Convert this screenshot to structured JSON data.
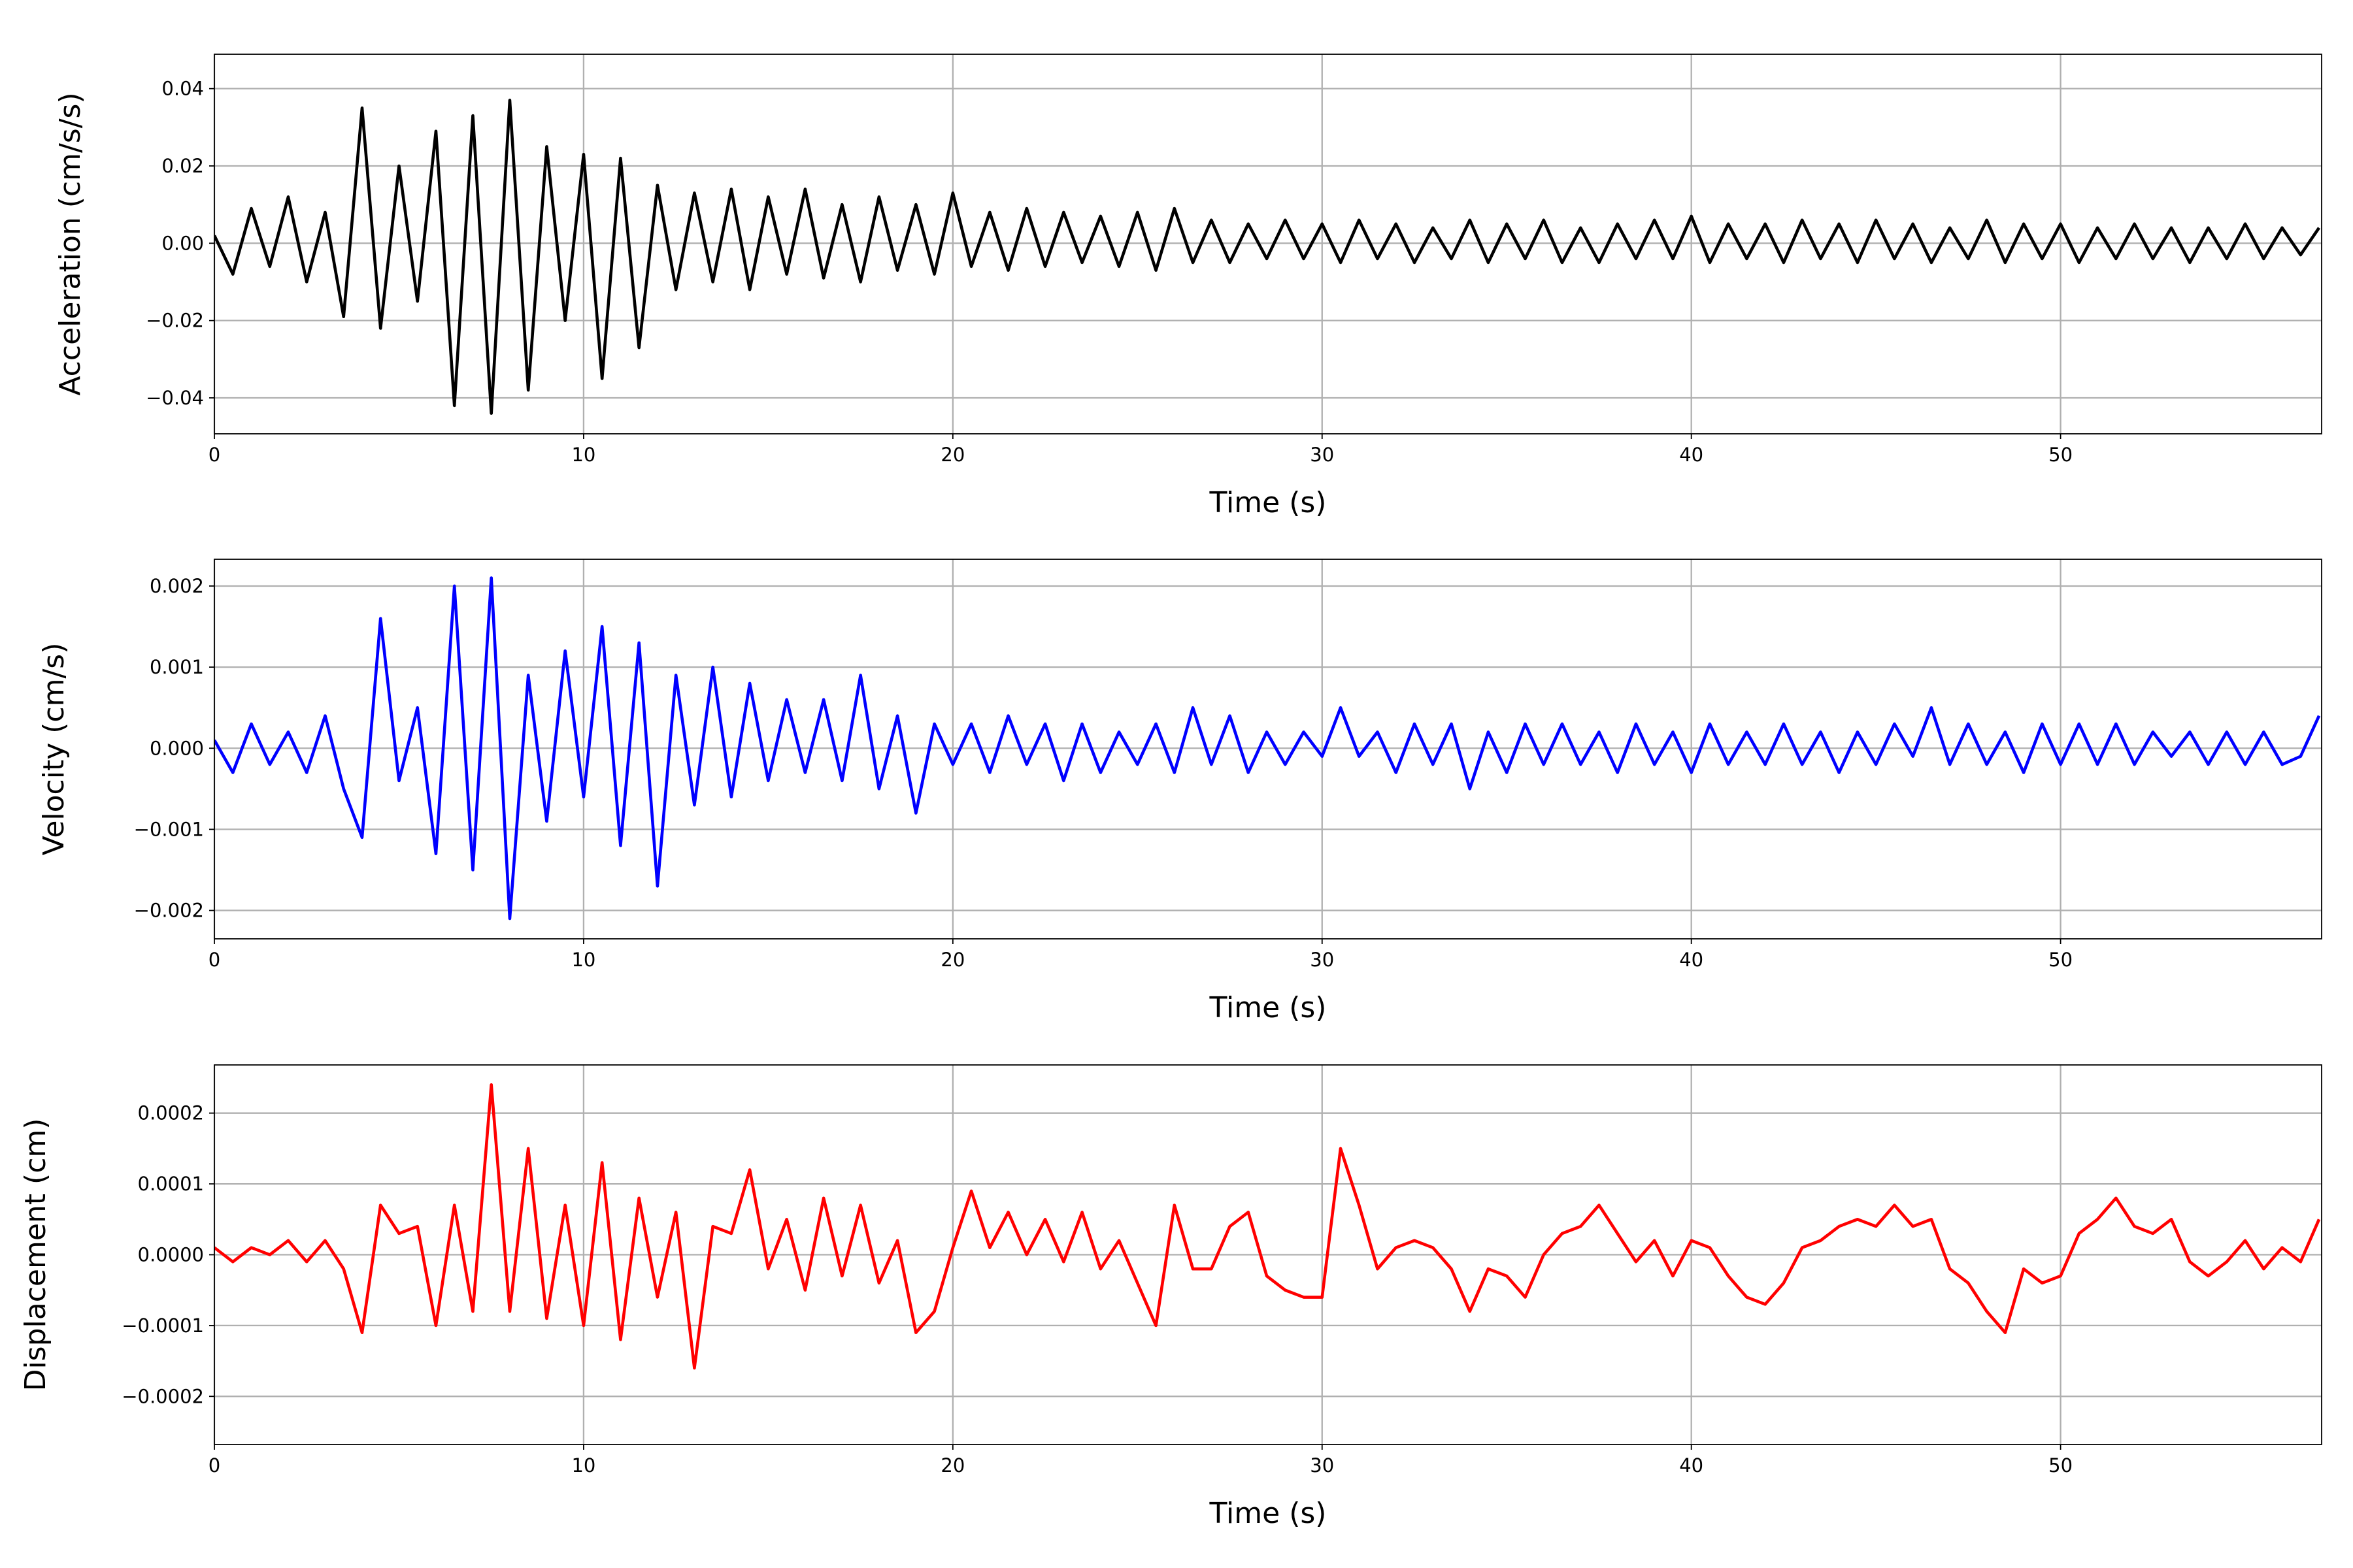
{
  "chart_data": [
    {
      "type": "line",
      "xlabel": "Time (s)",
      "ylabel": "Acceleration (cm/s/s)",
      "color": "#000000",
      "grid": true,
      "xlim": [
        0,
        57.07
      ],
      "ylim": [
        -0.0493,
        0.0489
      ],
      "xticks": [
        0,
        10,
        20,
        30,
        40,
        50
      ],
      "yticks": [
        {
          "value": -0.04,
          "label": "−0.04"
        },
        {
          "value": -0.02,
          "label": "−0.02"
        },
        {
          "value": 0,
          "label": "0.00"
        },
        {
          "value": 0.02,
          "label": "0.02"
        },
        {
          "value": 0.04,
          "label": "0.04"
        }
      ],
      "x": [
        0,
        0.5,
        1,
        1.5,
        2,
        2.5,
        3,
        3.5,
        4,
        4.5,
        5,
        5.5,
        6,
        6.5,
        7,
        7.5,
        8,
        8.5,
        9,
        9.5,
        10,
        10.5,
        11,
        11.5,
        12,
        12.5,
        13,
        13.5,
        14,
        14.5,
        15,
        15.5,
        16,
        16.5,
        17,
        17.5,
        18,
        18.5,
        19,
        19.5,
        20,
        20.5,
        21,
        21.5,
        22,
        22.5,
        23,
        23.5,
        24,
        24.5,
        25,
        25.5,
        26,
        26.5,
        27,
        27.5,
        28,
        28.5,
        29,
        29.5,
        30,
        30.5,
        31,
        31.5,
        32,
        32.5,
        33,
        33.5,
        34,
        34.5,
        35,
        35.5,
        36,
        36.5,
        37,
        37.5,
        38,
        38.5,
        39,
        39.5,
        40,
        40.5,
        41,
        41.5,
        42,
        42.5,
        43,
        43.5,
        44,
        44.5,
        45,
        45.5,
        46,
        46.5,
        47,
        47.5,
        48,
        48.5,
        49,
        49.5,
        50,
        50.5,
        51,
        51.5,
        52,
        52.5,
        53,
        53.5,
        54,
        54.5,
        55,
        55.5,
        56,
        56.5,
        57
      ],
      "values": [
        0.002,
        -0.008,
        0.009,
        -0.006,
        0.012,
        -0.01,
        0.008,
        -0.019,
        0.035,
        -0.022,
        0.02,
        -0.015,
        0.029,
        -0.042,
        0.033,
        -0.044,
        0.037,
        -0.038,
        0.025,
        -0.02,
        0.023,
        -0.035,
        0.022,
        -0.027,
        0.015,
        -0.012,
        0.013,
        -0.01,
        0.014,
        -0.012,
        0.012,
        -0.008,
        0.014,
        -0.009,
        0.01,
        -0.01,
        0.012,
        -0.007,
        0.01,
        -0.008,
        0.013,
        -0.006,
        0.008,
        -0.007,
        0.009,
        -0.006,
        0.008,
        -0.005,
        0.007,
        -0.006,
        0.008,
        -0.007,
        0.009,
        -0.005,
        0.006,
        -0.005,
        0.005,
        -0.004,
        0.006,
        -0.004,
        0.005,
        -0.005,
        0.006,
        -0.004,
        0.005,
        -0.005,
        0.004,
        -0.004,
        0.006,
        -0.005,
        0.005,
        -0.004,
        0.006,
        -0.005,
        0.004,
        -0.005,
        0.005,
        -0.004,
        0.006,
        -0.004,
        0.007,
        -0.005,
        0.005,
        -0.004,
        0.005,
        -0.005,
        0.006,
        -0.004,
        0.005,
        -0.005,
        0.006,
        -0.004,
        0.005,
        -0.005,
        0.004,
        -0.004,
        0.006,
        -0.005,
        0.005,
        -0.004,
        0.005,
        -0.005,
        0.004,
        -0.004,
        0.005,
        -0.004,
        0.004,
        -0.005,
        0.004,
        -0.004,
        0.005,
        -0.004,
        0.004,
        -0.003,
        0.004
      ]
    },
    {
      "type": "line",
      "xlabel": "Time (s)",
      "ylabel": "Velocity (cm/s)",
      "color": "#0000ff",
      "grid": true,
      "xlim": [
        0,
        57.07
      ],
      "ylim": [
        -0.00235,
        0.00233
      ],
      "xticks": [
        0,
        10,
        20,
        30,
        40,
        50
      ],
      "yticks": [
        {
          "value": -0.002,
          "label": "−0.002"
        },
        {
          "value": -0.001,
          "label": "−0.001"
        },
        {
          "value": 0,
          "label": "0.000"
        },
        {
          "value": 0.001,
          "label": "0.001"
        },
        {
          "value": 0.002,
          "label": "0.002"
        }
      ],
      "x": [
        0,
        0.5,
        1,
        1.5,
        2,
        2.5,
        3,
        3.5,
        4,
        4.5,
        5,
        5.5,
        6,
        6.5,
        7,
        7.5,
        8,
        8.5,
        9,
        9.5,
        10,
        10.5,
        11,
        11.5,
        12,
        12.5,
        13,
        13.5,
        14,
        14.5,
        15,
        15.5,
        16,
        16.5,
        17,
        17.5,
        18,
        18.5,
        19,
        19.5,
        20,
        20.5,
        21,
        21.5,
        22,
        22.5,
        23,
        23.5,
        24,
        24.5,
        25,
        25.5,
        26,
        26.5,
        27,
        27.5,
        28,
        28.5,
        29,
        29.5,
        30,
        30.5,
        31,
        31.5,
        32,
        32.5,
        33,
        33.5,
        34,
        34.5,
        35,
        35.5,
        36,
        36.5,
        37,
        37.5,
        38,
        38.5,
        39,
        39.5,
        40,
        40.5,
        41,
        41.5,
        42,
        42.5,
        43,
        43.5,
        44,
        44.5,
        45,
        45.5,
        46,
        46.5,
        47,
        47.5,
        48,
        48.5,
        49,
        49.5,
        50,
        50.5,
        51,
        51.5,
        52,
        52.5,
        53,
        53.5,
        54,
        54.5,
        55,
        55.5,
        56,
        56.5,
        57
      ],
      "values": [
        0.0001,
        -0.0003,
        0.0003,
        -0.0002,
        0.0002,
        -0.0003,
        0.0004,
        -0.0005,
        -0.0011,
        0.0016,
        -0.0004,
        0.0005,
        -0.0013,
        0.002,
        -0.0015,
        0.0021,
        -0.0021,
        0.0009,
        -0.0009,
        0.0012,
        -0.0006,
        0.0015,
        -0.0012,
        0.0013,
        -0.0017,
        0.0009,
        -0.0007,
        0.001,
        -0.0006,
        0.0008,
        -0.0004,
        0.0006,
        -0.0003,
        0.0006,
        -0.0004,
        0.0009,
        -0.0005,
        0.0004,
        -0.0008,
        0.0003,
        -0.0002,
        0.0003,
        -0.0003,
        0.0004,
        -0.0002,
        0.0003,
        -0.0004,
        0.0003,
        -0.0003,
        0.0002,
        -0.0002,
        0.0003,
        -0.0003,
        0.0005,
        -0.0002,
        0.0004,
        -0.0003,
        0.0002,
        -0.0002,
        0.0002,
        -0.0001,
        0.0005,
        -0.0001,
        0.0002,
        -0.0003,
        0.0003,
        -0.0002,
        0.0003,
        -0.0005,
        0.0002,
        -0.0003,
        0.0003,
        -0.0002,
        0.0003,
        -0.0002,
        0.0002,
        -0.0003,
        0.0003,
        -0.0002,
        0.0002,
        -0.0003,
        0.0003,
        -0.0002,
        0.0002,
        -0.0002,
        0.0003,
        -0.0002,
        0.0002,
        -0.0003,
        0.0002,
        -0.0002,
        0.0003,
        -0.0001,
        0.0005,
        -0.0002,
        0.0003,
        -0.0002,
        0.0002,
        -0.0003,
        0.0003,
        -0.0002,
        0.0003,
        -0.0002,
        0.0003,
        -0.0002,
        0.0002,
        -0.0001,
        0.0002,
        -0.0002,
        0.0002,
        -0.0002,
        0.0002,
        -0.0002,
        -0.0001,
        0.0004
      ]
    },
    {
      "type": "line",
      "xlabel": "Time (s)",
      "ylabel": "Displacement (cm)",
      "color": "#ff0000",
      "grid": true,
      "xlim": [
        0,
        57.07
      ],
      "ylim": [
        -0.000268,
        0.000268
      ],
      "xticks": [
        0,
        10,
        20,
        30,
        40,
        50
      ],
      "yticks": [
        {
          "value": -0.0002,
          "label": "−0.0002"
        },
        {
          "value": -0.0001,
          "label": "−0.0001"
        },
        {
          "value": 0,
          "label": "0.0000"
        },
        {
          "value": 0.0001,
          "label": "0.0001"
        },
        {
          "value": 0.0002,
          "label": "0.0002"
        }
      ],
      "x": [
        0,
        0.5,
        1,
        1.5,
        2,
        2.5,
        3,
        3.5,
        4,
        4.5,
        5,
        5.5,
        6,
        6.5,
        7,
        7.5,
        8,
        8.5,
        9,
        9.5,
        10,
        10.5,
        11,
        11.5,
        12,
        12.5,
        13,
        13.5,
        14,
        14.5,
        15,
        15.5,
        16,
        16.5,
        17,
        17.5,
        18,
        18.5,
        19,
        19.5,
        20,
        20.5,
        21,
        21.5,
        22,
        22.5,
        23,
        23.5,
        24,
        24.5,
        25,
        25.5,
        26,
        26.5,
        27,
        27.5,
        28,
        28.5,
        29,
        29.5,
        30,
        30.5,
        31,
        31.5,
        32,
        32.5,
        33,
        33.5,
        34,
        34.5,
        35,
        35.5,
        36,
        36.5,
        37,
        37.5,
        38,
        38.5,
        39,
        39.5,
        40,
        40.5,
        41,
        41.5,
        42,
        42.5,
        43,
        43.5,
        44,
        44.5,
        45,
        45.5,
        46,
        46.5,
        47,
        47.5,
        48,
        48.5,
        49,
        49.5,
        50,
        50.5,
        51,
        51.5,
        52,
        52.5,
        53,
        53.5,
        54,
        54.5,
        55,
        55.5,
        56,
        56.5,
        57
      ],
      "values": [
        1e-05,
        -1e-05,
        1e-05,
        0,
        2e-05,
        -1e-05,
        2e-05,
        -2e-05,
        -0.00011,
        7e-05,
        3e-05,
        4e-05,
        -0.0001,
        7e-05,
        -8e-05,
        0.00024,
        -8e-05,
        0.00015,
        -9e-05,
        7e-05,
        -0.0001,
        0.00013,
        -0.00012,
        8e-05,
        -6e-05,
        6e-05,
        -0.00016,
        4e-05,
        3e-05,
        0.00012,
        -2e-05,
        5e-05,
        -5e-05,
        8e-05,
        -3e-05,
        7e-05,
        -4e-05,
        2e-05,
        -0.00011,
        -8e-05,
        1e-05,
        9e-05,
        1e-05,
        6e-05,
        0,
        5e-05,
        -1e-05,
        6e-05,
        -2e-05,
        2e-05,
        -4e-05,
        -0.0001,
        7e-05,
        -2e-05,
        -2e-05,
        4e-05,
        6e-05,
        -3e-05,
        -5e-05,
        -6e-05,
        -6e-05,
        0.00015,
        7e-05,
        -2e-05,
        1e-05,
        2e-05,
        1e-05,
        -2e-05,
        -8e-05,
        -2e-05,
        -3e-05,
        -6e-05,
        0,
        3e-05,
        4e-05,
        7e-05,
        3e-05,
        -1e-05,
        2e-05,
        -3e-05,
        2e-05,
        1e-05,
        -3e-05,
        -6e-05,
        -7e-05,
        -4e-05,
        1e-05,
        2e-05,
        4e-05,
        5e-05,
        4e-05,
        7e-05,
        4e-05,
        5e-05,
        -2e-05,
        -4e-05,
        -8e-05,
        -0.00011,
        -2e-05,
        -4e-05,
        -3e-05,
        3e-05,
        5e-05,
        8e-05,
        4e-05,
        3e-05,
        5e-05,
        -1e-05,
        -3e-05,
        -1e-05,
        2e-05,
        -2e-05,
        1e-05,
        -1e-05,
        5e-05
      ]
    }
  ]
}
